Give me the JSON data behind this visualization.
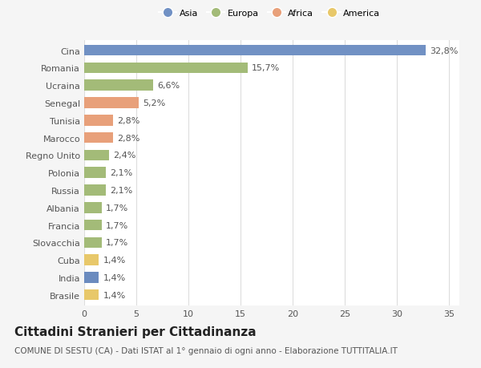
{
  "countries": [
    "Brasile",
    "India",
    "Cuba",
    "Slovacchia",
    "Francia",
    "Albania",
    "Russia",
    "Polonia",
    "Regno Unito",
    "Marocco",
    "Tunisia",
    "Senegal",
    "Ucraina",
    "Romania",
    "Cina"
  ],
  "values": [
    1.4,
    1.4,
    1.4,
    1.7,
    1.7,
    1.7,
    2.1,
    2.1,
    2.4,
    2.8,
    2.8,
    5.2,
    6.6,
    15.7,
    32.8
  ],
  "labels": [
    "1,4%",
    "1,4%",
    "1,4%",
    "1,7%",
    "1,7%",
    "1,7%",
    "2,1%",
    "2,1%",
    "2,4%",
    "2,8%",
    "2,8%",
    "5,2%",
    "6,6%",
    "15,7%",
    "32,8%"
  ],
  "colors": [
    "#e8c86a",
    "#6b8bbf",
    "#e8c86a",
    "#a3bb78",
    "#a3bb78",
    "#a3bb78",
    "#a3bb78",
    "#a3bb78",
    "#a3bb78",
    "#e8a07a",
    "#e8a07a",
    "#e8a07a",
    "#a3bb78",
    "#a3bb78",
    "#7191c4"
  ],
  "continents": [
    "America",
    "Asia",
    "America",
    "Europa",
    "Europa",
    "Europa",
    "Europa",
    "Europa",
    "Europa",
    "Africa",
    "Africa",
    "Africa",
    "Europa",
    "Europa",
    "Asia"
  ],
  "legend_labels": [
    "Asia",
    "Europa",
    "Africa",
    "America"
  ],
  "legend_colors": [
    "#7191c4",
    "#a3bb78",
    "#e8a07a",
    "#e8c86a"
  ],
  "title": "Cittadini Stranieri per Cittadinanza",
  "subtitle": "COMUNE DI SESTU (CA) - Dati ISTAT al 1° gennaio di ogni anno - Elaborazione TUTTITALIA.IT",
  "xlim": [
    0,
    36
  ],
  "xticks": [
    0,
    5,
    10,
    15,
    20,
    25,
    30,
    35
  ],
  "background_color": "#f5f5f5",
  "bar_background": "#ffffff",
  "grid_color": "#dddddd",
  "title_fontsize": 11,
  "subtitle_fontsize": 7.5,
  "label_fontsize": 8,
  "tick_fontsize": 8
}
